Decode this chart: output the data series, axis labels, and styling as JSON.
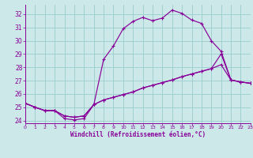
{
  "xlabel": "Windchill (Refroidissement éolien,°C)",
  "bg_color": "#cce8e8",
  "line_color": "#880099",
  "grid_color": "#99cccc",
  "xlim": [
    0,
    23
  ],
  "ylim": [
    23.8,
    32.7
  ],
  "xticks": [
    0,
    1,
    2,
    3,
    4,
    5,
    6,
    7,
    8,
    9,
    10,
    11,
    12,
    13,
    14,
    15,
    16,
    17,
    18,
    19,
    20,
    21,
    22,
    23
  ],
  "yticks": [
    24,
    25,
    26,
    27,
    28,
    29,
    30,
    31,
    32
  ],
  "s1": [
    25.3,
    25.0,
    24.75,
    24.75,
    24.15,
    24.05,
    24.15,
    25.2,
    28.6,
    29.6,
    30.9,
    31.45,
    31.75,
    31.5,
    31.7,
    32.3,
    32.05,
    31.55,
    31.3,
    30.0,
    29.2,
    27.05,
    26.9,
    26.8
  ],
  "s2": [
    25.3,
    25.0,
    24.75,
    24.75,
    24.35,
    24.25,
    24.35,
    25.2,
    25.55,
    25.75,
    25.95,
    26.15,
    26.45,
    26.65,
    26.85,
    27.05,
    27.3,
    27.5,
    27.7,
    27.9,
    29.0,
    27.05,
    26.9,
    26.8
  ],
  "s3": [
    25.3,
    25.0,
    24.75,
    24.75,
    24.35,
    24.25,
    24.35,
    25.2,
    25.55,
    25.75,
    25.95,
    26.15,
    26.45,
    26.65,
    26.85,
    27.05,
    27.3,
    27.5,
    27.7,
    27.9,
    28.2,
    27.05,
    26.9,
    26.8
  ]
}
